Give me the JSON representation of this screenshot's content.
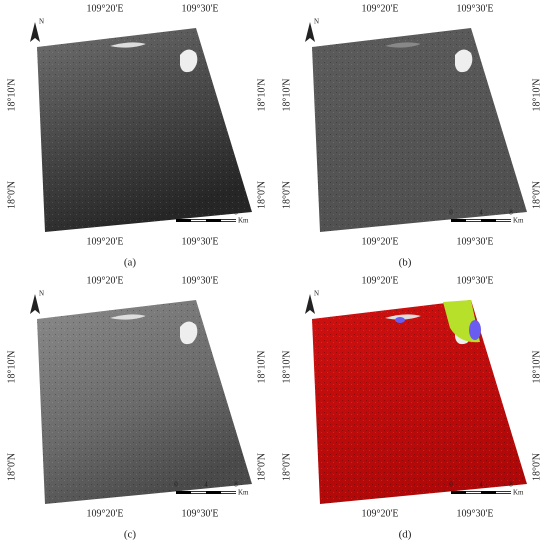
{
  "panels": [
    {
      "caption": "(a)",
      "north": "N",
      "top_labels": [
        "109°20'E",
        "109°30'E"
      ],
      "bottom_labels": [
        "109°20'E",
        "109°30'E"
      ],
      "left_labels": [
        "18°10'N",
        "18°0'N"
      ],
      "right_labels": [
        "18°10'N",
        "18°0'N"
      ],
      "scale_labels": [
        "0",
        "4",
        "8"
      ],
      "scale_unit": "Km"
    },
    {
      "caption": "(b)",
      "north": "N",
      "top_labels": [
        "109°20'E",
        "109°30'E"
      ],
      "bottom_labels": [
        "109°20'E",
        "109°30'E"
      ],
      "left_labels": [
        "18°10'N",
        "18°0'N"
      ],
      "right_labels": [
        "18°10'N",
        "18°0'N"
      ],
      "scale_labels": [
        "0",
        "4",
        "8"
      ],
      "scale_unit": "Km"
    },
    {
      "caption": "(c)",
      "north": "N",
      "top_labels": [
        "109°20'E",
        "109°30'E"
      ],
      "bottom_labels": [
        "109°20'E",
        "109°30'E"
      ],
      "left_labels": [
        "18°10'N",
        "18°0'N"
      ],
      "right_labels": [
        "18°10'N",
        "18°0'N"
      ],
      "scale_labels": [
        "0",
        "4",
        "8"
      ],
      "scale_unit": "Km"
    },
    {
      "caption": "(d)",
      "north": "N",
      "top_labels": [
        "109°20'E",
        "109°30'E"
      ],
      "bottom_labels": [
        "109°20'E",
        "109°30'E"
      ],
      "left_labels": [
        "18°10'N",
        "18°0'N"
      ],
      "right_labels": [
        "18°10'N",
        "18°0'N"
      ],
      "scale_labels": [
        "0",
        "4",
        "8"
      ],
      "scale_unit": "Km"
    }
  ]
}
